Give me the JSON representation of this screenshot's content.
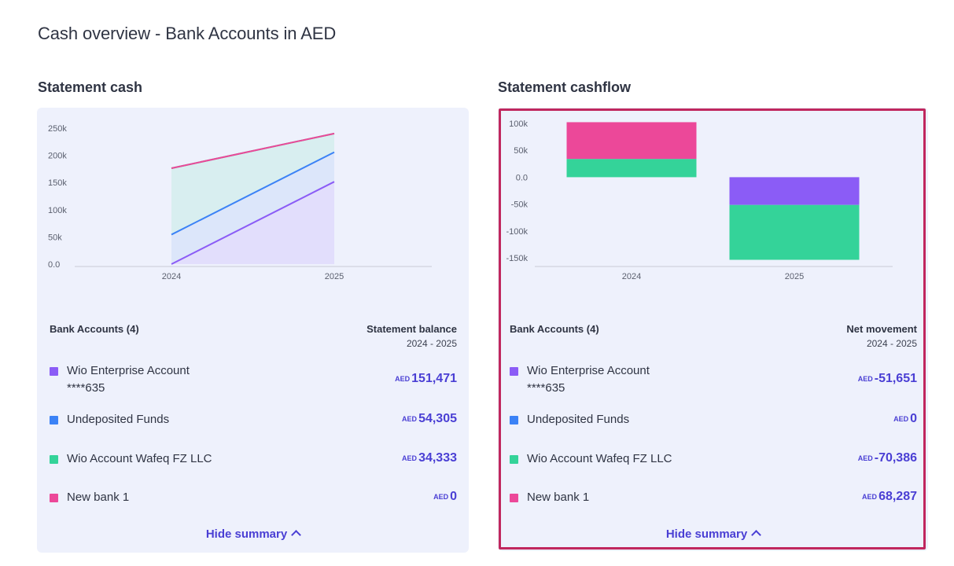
{
  "page": {
    "title": "Cash overview - Bank Accounts in AED"
  },
  "colors": {
    "wio_enterprise": "#8b5cf6",
    "undeposited": "#3b82f6",
    "wio_wafeq": "#34d399",
    "new_bank": "#ec4899"
  },
  "statement_cash": {
    "title": "Statement cash",
    "accounts_header": "Bank Accounts (4)",
    "value_header": "Statement balance",
    "period": "2024 - 2025",
    "hide_summary_label": "Hide summary",
    "rows": [
      {
        "name": "Wio Enterprise Account",
        "sub": "****635",
        "currency": "AED",
        "amount": "151,471",
        "color_key": "wio_enterprise"
      },
      {
        "name": "Undeposited Funds",
        "sub": "",
        "currency": "AED",
        "amount": "54,305",
        "color_key": "undeposited"
      },
      {
        "name": "Wio Account Wafeq FZ LLC",
        "sub": "",
        "currency": "AED",
        "amount": "34,333",
        "color_key": "wio_wafeq"
      },
      {
        "name": "New bank 1",
        "sub": "",
        "currency": "AED",
        "amount": "0",
        "color_key": "new_bank"
      }
    ],
    "chart_data": {
      "type": "area",
      "categories": [
        "2024",
        "2025"
      ],
      "y_ticks": [
        "250k",
        "200k",
        "150k",
        "100k",
        "50k",
        "0.0"
      ],
      "ylim": [
        0,
        250000
      ],
      "stacked": true,
      "series": [
        {
          "name": "Wio Enterprise Account",
          "values": [
            0,
            151471
          ],
          "color": "#8b5cf6"
        },
        {
          "name": "Undeposited Funds",
          "values": [
            54305,
            54305
          ],
          "color": "#3b82f6"
        },
        {
          "name": "Wio Account Wafeq FZ LLC",
          "values": [
            122000,
            34333
          ],
          "color": "#34d399"
        },
        {
          "name": "New bank 1",
          "values": [
            0,
            0
          ],
          "color": "#ec4899"
        }
      ]
    }
  },
  "statement_cashflow": {
    "title": "Statement cashflow",
    "accounts_header": "Bank Accounts (4)",
    "value_header": "Net movement",
    "period": "2024 - 2025",
    "hide_summary_label": "Hide summary",
    "rows": [
      {
        "name": "Wio Enterprise Account",
        "sub": "****635",
        "currency": "AED",
        "amount": "-51,651",
        "color_key": "wio_enterprise"
      },
      {
        "name": "Undeposited Funds",
        "sub": "",
        "currency": "AED",
        "amount": "0",
        "color_key": "undeposited"
      },
      {
        "name": "Wio Account Wafeq FZ LLC",
        "sub": "",
        "currency": "AED",
        "amount": "-70,386",
        "color_key": "wio_wafeq"
      },
      {
        "name": "New bank 1",
        "sub": "",
        "currency": "AED",
        "amount": "68,287",
        "color_key": "new_bank"
      }
    ],
    "chart_data": {
      "type": "bar",
      "stacked": true,
      "categories": [
        "2024",
        "2025"
      ],
      "y_ticks": [
        "100k",
        "50k",
        "0.0",
        "-50k",
        "-100k",
        "-150k"
      ],
      "ylim": [
        -150000,
        100000
      ],
      "series": [
        {
          "name": "Wio Enterprise Account",
          "values": [
            0,
            -51651
          ],
          "color": "#8b5cf6"
        },
        {
          "name": "Wio Account Wafeq FZ LLC",
          "values": [
            34000,
            -102000
          ],
          "color": "#34d399"
        },
        {
          "name": "New bank 1",
          "values": [
            68287,
            0
          ],
          "color": "#ec4899"
        }
      ]
    }
  }
}
